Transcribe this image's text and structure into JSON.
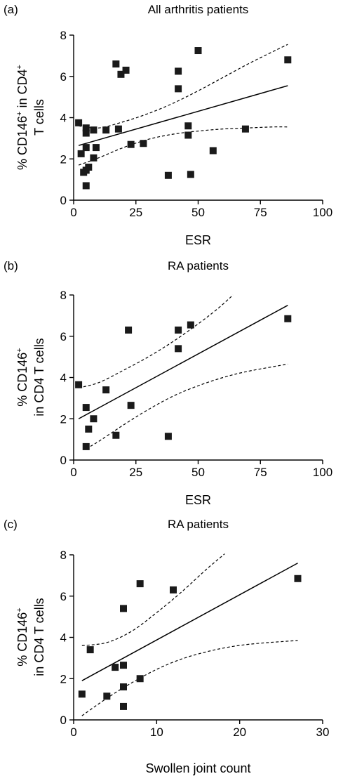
{
  "chart_data": [
    {
      "type": "scatter",
      "panel_label": "(a)",
      "title": "All arthritis patients",
      "ylabel_lines": [
        {
          "text": "% CD146",
          "sup": "+",
          "after": " in CD4",
          "sup2": "+"
        },
        {
          "text": "T cells",
          "sup": "",
          "after": "",
          "sup2": ""
        }
      ],
      "xlabel": "ESR",
      "xlim": [
        0,
        100
      ],
      "ylim": [
        0,
        8
      ],
      "xticks": [
        0,
        25,
        50,
        75,
        100
      ],
      "yticks": [
        0,
        2,
        4,
        6,
        8
      ],
      "points": [
        {
          "x": 2,
          "y": 3.75
        },
        {
          "x": 3,
          "y": 2.25
        },
        {
          "x": 4,
          "y": 1.35
        },
        {
          "x": 5,
          "y": 0.7
        },
        {
          "x": 5,
          "y": 3.25
        },
        {
          "x": 5,
          "y": 3.5
        },
        {
          "x": 5,
          "y": 2.55
        },
        {
          "x": 5,
          "y": 1.45
        },
        {
          "x": 6,
          "y": 1.6
        },
        {
          "x": 8,
          "y": 2.05
        },
        {
          "x": 8,
          "y": 3.4
        },
        {
          "x": 9,
          "y": 2.55
        },
        {
          "x": 13,
          "y": 3.4
        },
        {
          "x": 17,
          "y": 6.6
        },
        {
          "x": 18,
          "y": 3.45
        },
        {
          "x": 19,
          "y": 6.1
        },
        {
          "x": 21,
          "y": 6.3
        },
        {
          "x": 23,
          "y": 2.7
        },
        {
          "x": 28,
          "y": 2.75
        },
        {
          "x": 38,
          "y": 1.2
        },
        {
          "x": 42,
          "y": 6.25
        },
        {
          "x": 42,
          "y": 5.4
        },
        {
          "x": 46,
          "y": 3.6
        },
        {
          "x": 46,
          "y": 3.15
        },
        {
          "x": 47,
          "y": 1.25
        },
        {
          "x": 50,
          "y": 7.25
        },
        {
          "x": 56,
          "y": 2.4
        },
        {
          "x": 69,
          "y": 3.45
        },
        {
          "x": 86,
          "y": 6.8
        }
      ],
      "fit": {
        "x": [
          2,
          86
        ],
        "y": [
          2.65,
          5.55
        ]
      },
      "ci_upper": {
        "x": [
          2,
          10,
          20,
          30,
          40,
          50,
          60,
          70,
          80,
          86
        ],
        "y": [
          3.6,
          3.5,
          3.8,
          4.2,
          4.7,
          5.3,
          5.95,
          6.6,
          7.2,
          7.55
        ]
      },
      "ci_lower": {
        "x": [
          2,
          10,
          20,
          30,
          40,
          50,
          60,
          70,
          80,
          86
        ],
        "y": [
          1.7,
          2.05,
          2.55,
          2.95,
          3.2,
          3.35,
          3.45,
          3.5,
          3.55,
          3.55
        ]
      }
    },
    {
      "type": "scatter",
      "panel_label": "(b)",
      "title": "RA patients",
      "ylabel_lines": [
        {
          "text": "% CD146",
          "sup": "+",
          "after": "",
          "sup2": ""
        },
        {
          "text": "in CD4 T cells",
          "sup": "",
          "after": "",
          "sup2": ""
        }
      ],
      "xlabel": "ESR",
      "xlim": [
        0,
        100
      ],
      "ylim": [
        0,
        8
      ],
      "xticks": [
        0,
        25,
        50,
        75,
        100
      ],
      "yticks": [
        0,
        2,
        4,
        6,
        8
      ],
      "points": [
        {
          "x": 2,
          "y": 3.65
        },
        {
          "x": 5,
          "y": 2.55
        },
        {
          "x": 5,
          "y": 0.65
        },
        {
          "x": 6,
          "y": 1.5
        },
        {
          "x": 8,
          "y": 2.0
        },
        {
          "x": 13,
          "y": 3.4
        },
        {
          "x": 17,
          "y": 1.2
        },
        {
          "x": 22,
          "y": 6.3
        },
        {
          "x": 23,
          "y": 2.65
        },
        {
          "x": 38,
          "y": 1.15
        },
        {
          "x": 42,
          "y": 6.3
        },
        {
          "x": 42,
          "y": 5.4
        },
        {
          "x": 47,
          "y": 6.55
        },
        {
          "x": 86,
          "y": 6.85
        }
      ],
      "fit": {
        "x": [
          2,
          86
        ],
        "y": [
          2.0,
          7.5
        ]
      },
      "ci_upper": {
        "x": [
          2,
          10,
          20,
          30,
          40,
          50,
          58,
          64
        ],
        "y": [
          3.5,
          3.75,
          4.35,
          5.0,
          5.75,
          6.6,
          7.35,
          8.0
        ]
      },
      "ci_lower": {
        "x": [
          5,
          10,
          20,
          30,
          40,
          50,
          60,
          70,
          86
        ],
        "y": [
          0.55,
          0.9,
          1.7,
          2.45,
          3.1,
          3.6,
          4.0,
          4.3,
          4.65
        ]
      }
    },
    {
      "type": "scatter",
      "panel_label": "(c)",
      "title": "RA patients",
      "ylabel_lines": [
        {
          "text": "% CD146",
          "sup": "+",
          "after": "",
          "sup2": ""
        },
        {
          "text": "in CD4 T cells",
          "sup": "",
          "after": "",
          "sup2": ""
        }
      ],
      "xlabel": "Swollen joint count",
      "xlim": [
        0,
        30
      ],
      "ylim": [
        0,
        8
      ],
      "xticks": [
        0,
        10,
        20,
        30
      ],
      "yticks": [
        0,
        2,
        4,
        6,
        8
      ],
      "points": [
        {
          "x": 1,
          "y": 1.25
        },
        {
          "x": 2,
          "y": 3.4
        },
        {
          "x": 4,
          "y": 1.15
        },
        {
          "x": 5,
          "y": 2.55
        },
        {
          "x": 6,
          "y": 0.65
        },
        {
          "x": 6,
          "y": 1.6
        },
        {
          "x": 6,
          "y": 2.65
        },
        {
          "x": 6,
          "y": 5.4
        },
        {
          "x": 8,
          "y": 6.6
        },
        {
          "x": 8,
          "y": 2.0
        },
        {
          "x": 12,
          "y": 6.3
        },
        {
          "x": 27,
          "y": 6.85
        }
      ],
      "fit": {
        "x": [
          1,
          27
        ],
        "y": [
          1.9,
          7.6
        ]
      },
      "ci_upper": {
        "x": [
          1,
          4,
          7,
          10,
          13,
          16,
          18.2
        ],
        "y": [
          3.6,
          3.75,
          4.3,
          5.2,
          6.2,
          7.3,
          8.05
        ]
      },
      "ci_lower": {
        "x": [
          1,
          4,
          7,
          10,
          13,
          16,
          19,
          22,
          27
        ],
        "y": [
          0.2,
          1.05,
          1.8,
          2.45,
          2.95,
          3.3,
          3.55,
          3.7,
          3.85
        ]
      }
    }
  ]
}
